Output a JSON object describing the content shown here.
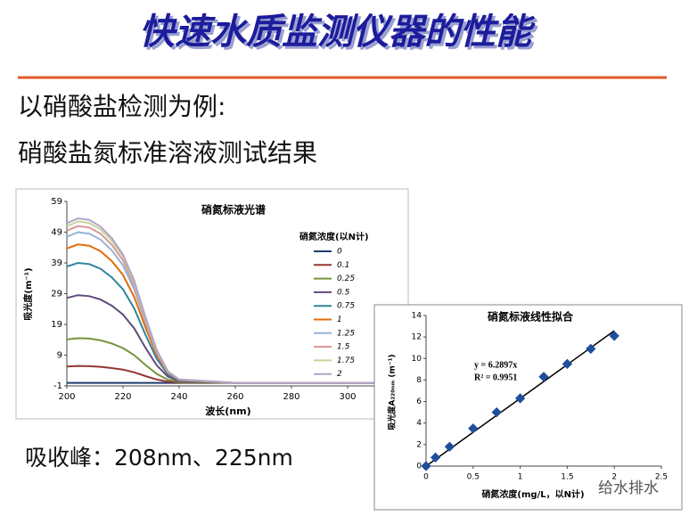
{
  "header": {
    "title": "快速水质监测仪器的性能"
  },
  "text": {
    "line1": "以硝酸盐检测为例:",
    "line2": "硝酸盐氮标准溶液测试结果",
    "peaks": "吸收峰：208nm、225nm"
  },
  "watermark": "给水排水",
  "chart_data": [
    {
      "type": "line",
      "title": "硝氮标液光谱",
      "x_label": "波长(nm)",
      "y_label": "吸光度(m⁻¹)",
      "legend_title": "硝氮浓度(以N计)",
      "x": [
        200,
        204,
        208,
        212,
        216,
        220,
        224,
        228,
        232,
        236,
        240,
        260,
        320
      ],
      "xlim": [
        200,
        320
      ],
      "xticks": [
        200,
        220,
        240,
        260,
        280,
        300
      ],
      "ylim": [
        -1,
        59
      ],
      "yticks": [
        -1,
        9,
        19,
        29,
        39,
        49,
        59
      ],
      "series": [
        {
          "name": "0",
          "color": "#1f3c6e",
          "values": [
            0,
            0,
            0,
            0,
            0,
            0,
            0,
            0,
            0,
            0,
            0,
            0,
            0
          ]
        },
        {
          "name": "0.1",
          "color": "#943634",
          "values": [
            5.3,
            5.5,
            5.4,
            5.2,
            4.8,
            4.3,
            3.4,
            2.2,
            1.1,
            0.4,
            0.1,
            0,
            0
          ]
        },
        {
          "name": "0.25",
          "color": "#77933c",
          "values": [
            14.1,
            14.5,
            14.4,
            13.8,
            12.8,
            11.3,
            9,
            5.8,
            2.9,
            1,
            0.3,
            0,
            0
          ]
        },
        {
          "name": "0.5",
          "color": "#604a7b",
          "values": [
            27.6,
            28.5,
            28.2,
            27.1,
            25.1,
            22.2,
            17.7,
            11.4,
            5.7,
            2,
            0.6,
            0,
            0
          ]
        },
        {
          "name": "0.75",
          "color": "#31859c",
          "values": [
            37.8,
            39,
            38.6,
            37.1,
            34.3,
            30.4,
            24.2,
            15.6,
            7.8,
            2.7,
            0.8,
            0,
            0
          ]
        },
        {
          "name": "1",
          "color": "#e46c0a",
          "values": [
            43.7,
            45,
            44.6,
            42.8,
            39.6,
            35.1,
            27.9,
            18,
            9,
            3.2,
            0.9,
            0,
            0
          ]
        },
        {
          "name": "1.25",
          "color": "#95b3d7",
          "values": [
            47.5,
            49,
            48.5,
            46.6,
            43.1,
            38.2,
            30.4,
            19.6,
            9.8,
            3.4,
            1,
            0,
            0
          ]
        },
        {
          "name": "1.5",
          "color": "#d99694",
          "values": [
            49.5,
            51,
            50.5,
            48.5,
            44.9,
            39.8,
            31.6,
            20.4,
            10.2,
            3.6,
            1,
            0,
            0
          ]
        },
        {
          "name": "1.75",
          "color": "#c3d69b",
          "values": [
            50.9,
            52.5,
            52,
            49.9,
            46.2,
            41,
            32.6,
            21,
            10.5,
            3.7,
            1.1,
            0,
            0
          ]
        },
        {
          "name": "2",
          "color": "#b3a2c7",
          "values": [
            51.9,
            53.5,
            53,
            50.8,
            47.1,
            41.7,
            33.2,
            21.4,
            10.7,
            3.7,
            1.1,
            0,
            0
          ]
        }
      ]
    },
    {
      "type": "scatter",
      "title": "硝氮标液线性拟合",
      "x_label": "硝氮浓度(mg/L，以N计)",
      "y_label": "吸光度A₂₂₀ₙₘ (m⁻¹)",
      "annotations": [
        "y = 6.2897x",
        "R² = 0.9951"
      ],
      "x": [
        0,
        0.1,
        0.25,
        0.5,
        0.75,
        1,
        1.25,
        1.5,
        1.75,
        2
      ],
      "values": [
        0,
        0.8,
        1.8,
        3.5,
        5.0,
        6.3,
        8.3,
        9.5,
        10.9,
        12.1
      ],
      "color": "#1f4e9c",
      "fit": {
        "x": [
          0,
          2
        ],
        "values": [
          0,
          12.58
        ]
      },
      "xlim": [
        0,
        2.5
      ],
      "xticks": [
        0,
        0.5,
        1,
        1.5,
        2,
        2.5
      ],
      "ylim": [
        0,
        14
      ],
      "yticks": [
        0,
        2,
        4,
        6,
        8,
        10,
        12,
        14
      ]
    }
  ]
}
